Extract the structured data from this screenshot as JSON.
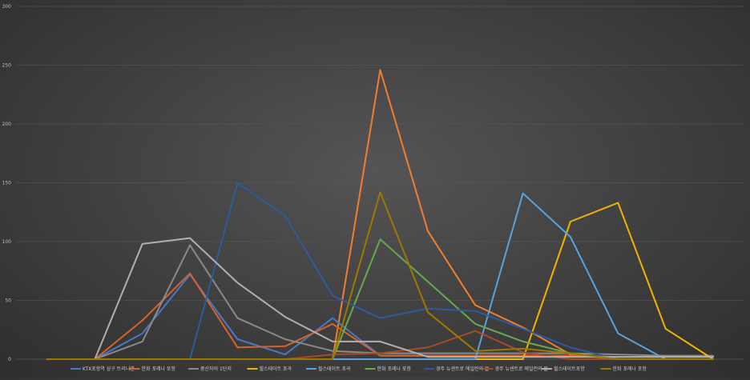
{
  "chart_data": {
    "type": "line",
    "title": "",
    "xlabel": "",
    "ylabel": "",
    "ylim": [
      0,
      300
    ],
    "yticks": [
      0,
      50,
      100,
      150,
      200,
      250,
      300
    ],
    "x": [
      1,
      2,
      3,
      4,
      5,
      6,
      7,
      8,
      9,
      10,
      11,
      12,
      13,
      14,
      15
    ],
    "grid": "horizontal",
    "legend_position": "bottom",
    "series": [
      {
        "name": "KTX포항역 삼구 트리니엔",
        "color": "#4a78c2",
        "values": [
          0,
          0,
          22,
          72,
          17,
          4,
          35,
          3,
          3,
          3,
          3,
          3,
          2,
          2,
          2
        ]
      },
      {
        "name": "한화 포레나 포항",
        "color": "#d6632c",
        "values": [
          0,
          0,
          33,
          73,
          10,
          11,
          30,
          3,
          3,
          3,
          3,
          3,
          2,
          2,
          2
        ]
      },
      {
        "name": "중산자이 1단지",
        "color": "#8a8a8a",
        "values": [
          0,
          0,
          15,
          97,
          35,
          17,
          7,
          5,
          5,
          5,
          5,
          5,
          4,
          3,
          3
        ]
      },
      {
        "name": "힐스테이트 초곡",
        "color": "#f0b400",
        "values": [
          0,
          0,
          0,
          0,
          0,
          0,
          0,
          0,
          0,
          0,
          0,
          117,
          133,
          26,
          0
        ]
      },
      {
        "name": "힐스테이트 초곡",
        "color": "#5aa2dc",
        "values": [
          0,
          0,
          0,
          0,
          0,
          0,
          0,
          0,
          0,
          0,
          141,
          104,
          22,
          0,
          0
        ]
      },
      {
        "name": "한화 포레나 포항",
        "color": "#6aa84f",
        "values": [
          0,
          0,
          0,
          0,
          0,
          0,
          0,
          102,
          66,
          30,
          15,
          5,
          0,
          0,
          0
        ]
      },
      {
        "name": "경주 뉴센트로 에일린의 뜰",
        "color": "#2f5aa0",
        "values": [
          0,
          0,
          0,
          0,
          150,
          122,
          54,
          35,
          43,
          41,
          26,
          10,
          0,
          0,
          0
        ]
      },
      {
        "name": "경주 뉴센트로 에일린의 뜰",
        "color": "#a94a25",
        "values": [
          0,
          0,
          0,
          0,
          0,
          0,
          4,
          5,
          10,
          24,
          6,
          0,
          0,
          0,
          0
        ]
      },
      {
        "name": "힐스테이트포항",
        "color": "#b0b0b0",
        "values": [
          0,
          0,
          98,
          103,
          65,
          36,
          15,
          15,
          2,
          2,
          2,
          2,
          2,
          2,
          2
        ]
      },
      {
        "name": "한화 포레나 포항",
        "color": "#9c7a00",
        "values": [
          0,
          0,
          0,
          0,
          0,
          0,
          0,
          142,
          40,
          7,
          9,
          5,
          0,
          0,
          0
        ]
      }
    ],
    "extra_series": [
      {
        "name": "",
        "color": "#ef7f2f",
        "values": [
          0,
          0,
          0,
          0,
          0,
          0,
          0,
          246,
          109,
          46,
          27,
          4,
          0,
          0,
          0
        ]
      }
    ]
  }
}
